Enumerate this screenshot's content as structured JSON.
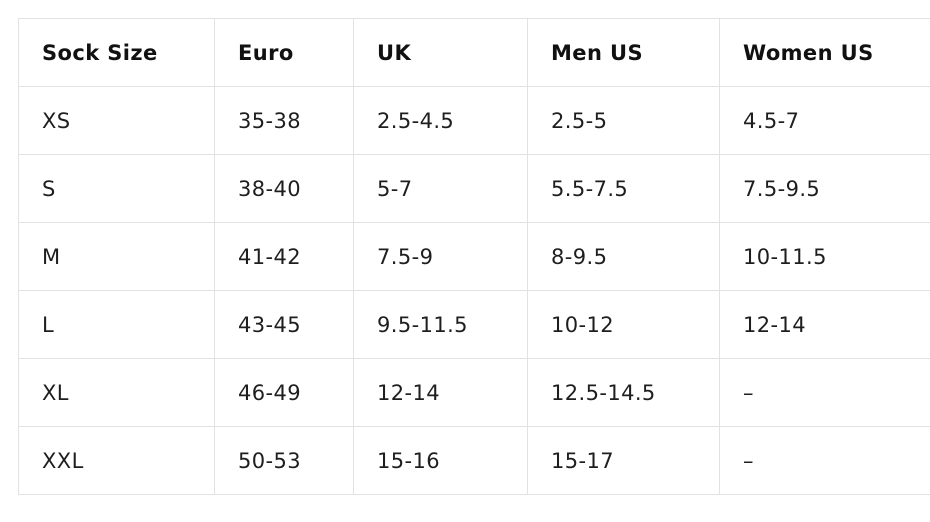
{
  "table": {
    "headers": [
      "Sock Size",
      "Euro",
      "UK",
      "Men US",
      "Women US"
    ],
    "rows": [
      [
        "XS",
        "35-38",
        "2.5-4.5",
        "2.5-5",
        "4.5-7"
      ],
      [
        "S",
        "38-40",
        "5-7",
        "5.5-7.5",
        "7.5-9.5"
      ],
      [
        "M",
        "41-42",
        "7.5-9",
        "8-9.5",
        "10-11.5"
      ],
      [
        "L",
        "43-45",
        "9.5-11.5",
        "10-12",
        "12-14"
      ],
      [
        "XL",
        "46-49",
        "12-14",
        "12.5-14.5",
        "–"
      ],
      [
        "XXL",
        "50-53",
        "15-16",
        "15-17",
        "–"
      ]
    ]
  }
}
